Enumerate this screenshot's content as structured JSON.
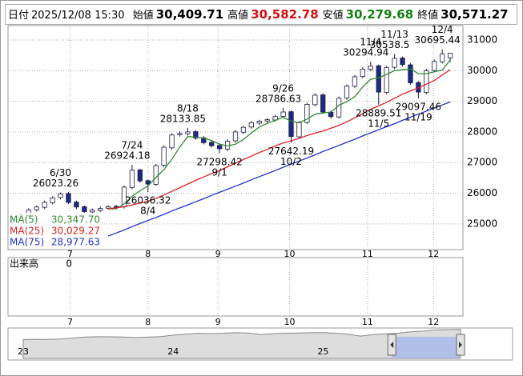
{
  "header": {
    "date_label": "日付",
    "datetime": "2025/12/08 15:30",
    "items": [
      {
        "label": "始値",
        "value": 30409.71,
        "value_label": "30,409.71",
        "color": "#000000"
      },
      {
        "label": "高値",
        "value": 30582.78,
        "value_label": "30,582.78",
        "color": "#d01010"
      },
      {
        "label": "安値",
        "value": 30279.68,
        "value_label": "30,279.68",
        "color": "#108010"
      },
      {
        "label": "終値",
        "value": 30571.27,
        "value_label": "30,571.27",
        "color": "#000000"
      }
    ]
  },
  "chart_data": {
    "type": "candlestick",
    "categories": [
      null,
      null,
      null,
      null,
      null,
      null,
      null,
      null,
      null,
      null,
      null,
      null,
      null,
      null,
      null,
      null,
      null,
      null,
      null,
      null,
      null,
      null,
      null,
      null,
      null,
      null,
      null,
      null,
      null,
      null,
      null,
      null,
      null,
      null,
      null,
      null,
      null,
      null,
      null,
      null,
      null,
      null,
      null,
      null,
      null,
      null,
      null,
      null,
      null,
      null,
      null,
      null,
      null,
      null,
      null,
      null
    ],
    "open": [
      25050,
      25160,
      25290,
      25460,
      25540,
      25690,
      25860,
      25990,
      25710,
      25560,
      25390,
      25440,
      25510,
      25570,
      25560,
      26190,
      26760,
      26410,
      26290,
      26910,
      27480,
      27910,
      27940,
      28010,
      27810,
      27660,
      27560,
      27440,
      27710,
      27990,
      28160,
      28290,
      28360,
      28390,
      28510,
      28660,
      27840,
      28310,
      28890,
      29210,
      28640,
      28490,
      29110,
      29490,
      29810,
      30040,
      30160,
      29290,
      30110,
      30410,
      30190,
      29610,
      29290,
      30010,
      30290,
      30409.71
    ],
    "high": [
      25220,
      25360,
      25510,
      25600,
      25760,
      25900,
      26023.26,
      26040,
      25760,
      25600,
      25500,
      25560,
      25610,
      25620,
      26250,
      26924.18,
      26800,
      26450,
      26960,
      27560,
      27960,
      28020,
      28133.85,
      28060,
      27870,
      27720,
      27620,
      27760,
      28060,
      28200,
      28360,
      28400,
      28450,
      28560,
      28786.63,
      28700,
      28350,
      28950,
      29260,
      29260,
      28700,
      29160,
      29550,
      29860,
      30110,
      30294.94,
      30200,
      30160,
      30538.5,
      30460,
      30250,
      29660,
      30060,
      30360,
      30695.44,
      30582.78
    ],
    "low": [
      25000,
      25100,
      25230,
      25400,
      25480,
      25640,
      25800,
      25650,
      25480,
      25340,
      25330,
      25390,
      25460,
      25490,
      25500,
      26130,
      26340,
      26036.32,
      26240,
      26850,
      27420,
      27850,
      27880,
      27740,
      27590,
      27490,
      27298.42,
      27380,
      27650,
      27930,
      28100,
      28230,
      28300,
      28330,
      28450,
      27642.19,
      27780,
      28250,
      28830,
      28590,
      28430,
      28430,
      29050,
      29430,
      29750,
      29980,
      28889.51,
      29230,
      30050,
      30130,
      29540,
      29097.46,
      29230,
      29950,
      30230,
      30279.68
    ],
    "close": [
      25150,
      25300,
      25450,
      25550,
      25700,
      25850,
      25980,
      25700,
      25550,
      25400,
      25450,
      25500,
      25560,
      25550,
      26200,
      26750,
      26400,
      26300,
      26900,
      27500,
      27900,
      27950,
      28000,
      27800,
      27650,
      27550,
      27450,
      27700,
      28000,
      28150,
      28300,
      28350,
      28400,
      28500,
      28650,
      27850,
      28300,
      28900,
      29200,
      28650,
      28500,
      29100,
      29500,
      29800,
      30050,
      30150,
      29300,
      30100,
      30400,
      30200,
      29600,
      29300,
      30000,
      30300,
      30550,
      30571.27
    ],
    "up_color": "#ffffff",
    "down_color": "#1c2a80",
    "edge_color": "#1a1a4a",
    "series": [
      {
        "name": "MA(5)",
        "color": "#2e8b2e",
        "value_label": "30,347.70",
        "values": [
          null,
          null,
          null,
          null,
          null,
          null,
          null,
          null,
          null,
          null,
          null,
          null,
          25490,
          25490,
          25650,
          25900,
          26080,
          26240,
          26510,
          26770,
          27110,
          27510,
          27850,
          27830,
          27800,
          27720,
          27600,
          27550,
          27600,
          27750,
          27970,
          28160,
          28280,
          28380,
          28480,
          28350,
          28300,
          28420,
          28580,
          28620,
          28650,
          28870,
          28990,
          29150,
          29470,
          29720,
          29760,
          29880,
          30000,
          30030,
          30060,
          29900,
          29900,
          29960,
          30020,
          30347.7
        ]
      },
      {
        "name": "MA(25)",
        "color": "#e02020",
        "value_label": "30,029.27",
        "values": [
          null,
          null,
          null,
          null,
          null,
          null,
          null,
          null,
          null,
          null,
          null,
          null,
          25500,
          25520,
          25560,
          25620,
          25680,
          25740,
          25830,
          25940,
          26060,
          26180,
          26300,
          26420,
          26530,
          26640,
          26740,
          26860,
          26980,
          27100,
          27210,
          27330,
          27430,
          27540,
          27640,
          27710,
          27790,
          27880,
          27960,
          28030,
          28120,
          28210,
          28330,
          28460,
          28600,
          28740,
          28850,
          28970,
          29100,
          29230,
          29340,
          29440,
          29560,
          29680,
          29860,
          30029.27
        ]
      },
      {
        "name": "MA(75)",
        "color": "#2030d0",
        "value_label": "28,977.63",
        "values": [
          null,
          null,
          null,
          null,
          null,
          null,
          null,
          null,
          null,
          null,
          null,
          null,
          24600,
          24700,
          24800,
          24910,
          25010,
          25110,
          25210,
          25310,
          25420,
          25520,
          25620,
          25720,
          25820,
          25930,
          26030,
          26130,
          26230,
          26330,
          26440,
          26540,
          26640,
          26740,
          26850,
          26950,
          27050,
          27150,
          27250,
          27360,
          27460,
          27560,
          27660,
          27760,
          27870,
          27970,
          28070,
          28170,
          28270,
          28380,
          28480,
          28580,
          28680,
          28780,
          28880,
          28977.63
        ]
      }
    ],
    "annotations": [
      {
        "date": "6/30",
        "value": 26023.26
      },
      {
        "date": "7/24",
        "value": 26924.18
      },
      {
        "date": "8/4",
        "value": 26036.32
      },
      {
        "date": "8/18",
        "value": 28133.85
      },
      {
        "date": "9/1",
        "value": 27298.42
      },
      {
        "date": "9/26",
        "value": 28786.63
      },
      {
        "date": "10/2",
        "value": 27642.19
      },
      {
        "date": "11/4",
        "value": 30294.94
      },
      {
        "date": "11/13",
        "value": 30538.5
      },
      {
        "date": "11/5",
        "value": 28889.51
      },
      {
        "date": "11/19",
        "value": 29097.46
      },
      {
        "date": "12/4",
        "value": 30695.44
      }
    ],
    "xlim": [
      -0.6,
      56.6
    ],
    "xticks": [
      {
        "value": 7.2,
        "label": "7"
      },
      {
        "value": 17,
        "label": "8"
      },
      {
        "value": 25.8,
        "label": "9"
      },
      {
        "value": 34.8,
        "label": "10"
      },
      {
        "value": 44.6,
        "label": "11"
      },
      {
        "value": 52.9,
        "label": "12"
      }
    ],
    "ylim": [
      24160,
      31470
    ],
    "yticks": [
      25000,
      26000,
      27000,
      28000,
      29000,
      30000,
      31000
    ],
    "grid": true
  },
  "volume": {
    "label": "出来高",
    "yticks": [
      0
    ]
  },
  "navigator": {
    "values": [
      19800,
      20100,
      20000,
      20500,
      21500,
      22500,
      22800,
      22700,
      22500,
      22000,
      22400,
      23000,
      24500,
      25500,
      26500,
      26000,
      26500,
      27000,
      26800,
      25000,
      26000,
      26500,
      26700,
      27000,
      27200,
      26500,
      25500,
      23500,
      25000,
      25800,
      26500,
      28000,
      28700,
      30000,
      30300,
      30571
    ],
    "xlim": [
      -0.9,
      35
    ],
    "ylim": [
      0,
      32000
    ],
    "window": [
      29.5,
      35
    ],
    "xticks": [
      {
        "value": 0,
        "label": "23"
      },
      {
        "value": 12,
        "label": "24"
      },
      {
        "value": 24,
        "label": "25"
      }
    ]
  }
}
